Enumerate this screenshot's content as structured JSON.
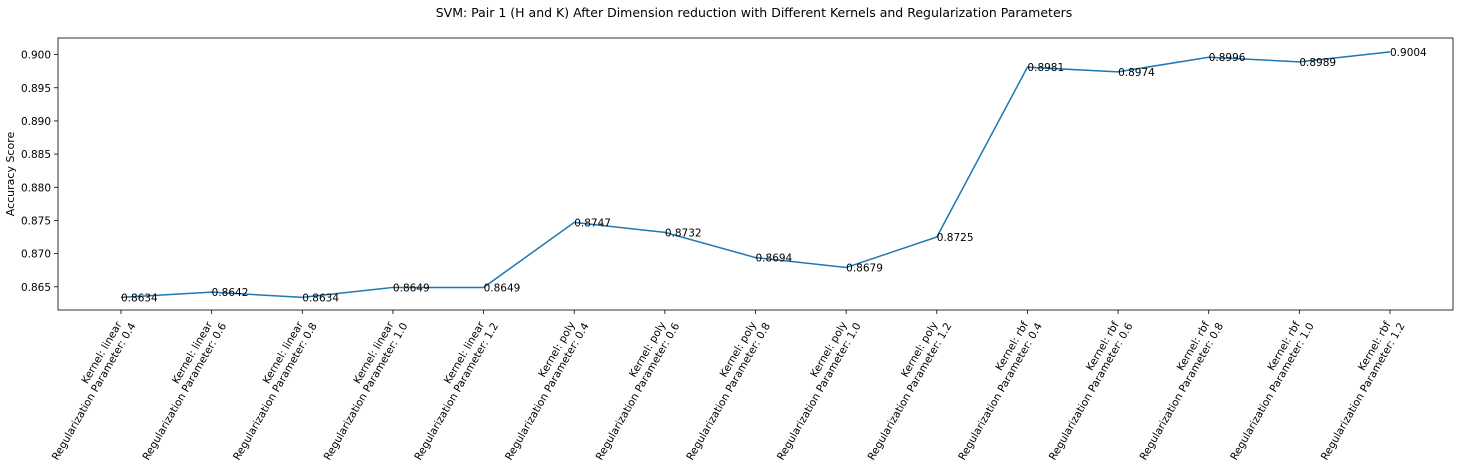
{
  "chart_data": {
    "type": "line",
    "title": "SVM: Pair 1 (H and K) After Dimension reduction with Different Kernels and Regularization Parameters",
    "xlabel": "",
    "ylabel": "Accuracy Score",
    "ylim": [
      0.8615,
      0.9025
    ],
    "yticks": [
      "0.865",
      "0.870",
      "0.875",
      "0.880",
      "0.885",
      "0.890",
      "0.895",
      "0.900"
    ],
    "grid": false,
    "line_color": "#1f77b4",
    "categories": [
      [
        "Kernel: linear",
        "Regularization Parameter: 0.4"
      ],
      [
        "Kernel: linear",
        "Regularization Parameter: 0.6"
      ],
      [
        "Kernel: linear",
        "Regularization Parameter: 0.8"
      ],
      [
        "Kernel: linear",
        "Regularization Parameter: 1.0"
      ],
      [
        "Kernel: linear",
        "Regularization Parameter: 1.2"
      ],
      [
        "Kernel: poly",
        "Regularization Parameter: 0.4"
      ],
      [
        "Kernel: poly",
        "Regularization Parameter: 0.6"
      ],
      [
        "Kernel: poly",
        "Regularization Parameter: 0.8"
      ],
      [
        "Kernel: poly",
        "Regularization Parameter: 1.0"
      ],
      [
        "Kernel: poly",
        "Regularization Parameter: 1.2"
      ],
      [
        "Kernel: rbf",
        "Regularization Parameter: 0.4"
      ],
      [
        "Kernel: rbf",
        "Regularization Parameter: 0.6"
      ],
      [
        "Kernel: rbf",
        "Regularization Parameter: 0.8"
      ],
      [
        "Kernel: rbf",
        "Regularization Parameter: 1.0"
      ],
      [
        "Kernel: rbf",
        "Regularization Parameter: 1.2"
      ]
    ],
    "values": [
      0.8634,
      0.8642,
      0.8634,
      0.8649,
      0.8649,
      0.8747,
      0.8732,
      0.8694,
      0.8679,
      0.8725,
      0.8981,
      0.8974,
      0.8996,
      0.8989,
      0.9004
    ],
    "data_labels": [
      "0.8634",
      "0.8642",
      "0.8634",
      "0.8649",
      "0.8649",
      "0.8747",
      "0.8732",
      "0.8694",
      "0.8679",
      "0.8725",
      "0.8981",
      "0.8974",
      "0.8996",
      "0.8989",
      "0.9004"
    ]
  }
}
